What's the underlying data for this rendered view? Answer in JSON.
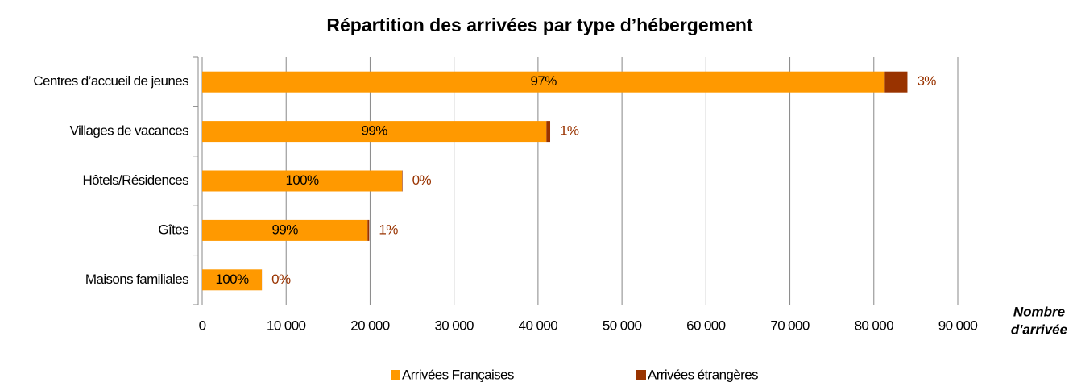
{
  "chart_data": {
    "type": "hbar_stacked",
    "title": "Répartition des arrivées par type d’hébergement",
    "x_label": "Nombre d'arrivée",
    "categories": [
      "Centres d’accueil de jeunes",
      "Villages de vacances",
      "Hôtels/Résidences",
      "Gîtes",
      "Maisons familiales"
    ],
    "series": [
      {
        "name": "Arrivées Françaises",
        "color": "#FF9900",
        "values": [
          81300,
          41000,
          23800,
          19700,
          7100
        ],
        "share_labels": [
          "97%",
          "99%",
          "100%",
          "99%",
          "100%"
        ]
      },
      {
        "name": "Arrivées étrangères",
        "color": "#993300",
        "values": [
          2700,
          450,
          60,
          200,
          10
        ],
        "share_labels": [
          "3%",
          "1%",
          "0%",
          "1%",
          "0%"
        ]
      }
    ],
    "xlim": [
      0,
      90000
    ],
    "xticks": [
      0,
      {
        "value": 10000,
        "label": "10 000"
      },
      {
        "value": 20000,
        "label": "20 000"
      },
      {
        "value": 30000,
        "label": "30 000"
      },
      {
        "value": 40000,
        "label": "40 000"
      },
      {
        "value": 50000,
        "label": "50 000"
      },
      {
        "value": 60000,
        "label": "60 000"
      },
      {
        "value": 70000,
        "label": "70 000"
      },
      {
        "value": 80000,
        "label": "80 000"
      },
      {
        "value": 90000,
        "label": "90 000"
      }
    ],
    "grid": true
  }
}
